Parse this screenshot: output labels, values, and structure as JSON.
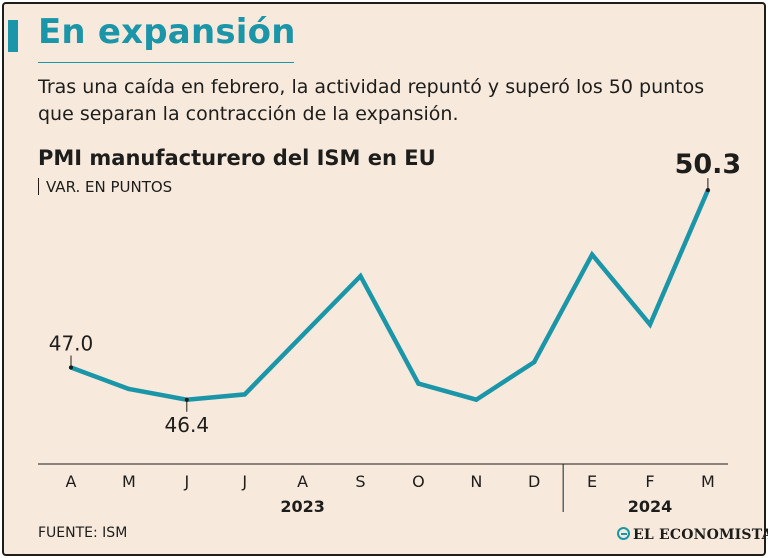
{
  "header": {
    "headline": "En expansión",
    "subtitle": "Tras una caída en febrero, la actividad repuntó y superó los 50 puntos que separan la contracción de la expansión."
  },
  "chart_data": {
    "type": "line",
    "title": "PMI manufacturero del ISM en EU",
    "unit_label": "VAR. EN PUNTOS",
    "categories": [
      "A",
      "M",
      "J",
      "J",
      "A",
      "S",
      "O",
      "N",
      "D",
      "E",
      "F",
      "M"
    ],
    "years": [
      {
        "label": "2023",
        "from": 0,
        "to": 8
      },
      {
        "label": "2024",
        "from": 9,
        "to": 11
      }
    ],
    "series": [
      {
        "name": "PMI manufacturero",
        "values": [
          47.0,
          46.6,
          46.4,
          46.5,
          47.6,
          48.7,
          46.7,
          46.4,
          47.1,
          49.1,
          47.8,
          50.3
        ]
      }
    ],
    "ylim": [
      45.8,
      50.6
    ],
    "annotations": [
      {
        "index": 0,
        "label": "47.0",
        "placement": "above"
      },
      {
        "index": 2,
        "label": "46.4",
        "placement": "below"
      },
      {
        "index": 11,
        "label": "50.3",
        "placement": "above",
        "bold": true
      }
    ],
    "line_color": "#1b96a8"
  },
  "footer": {
    "source": "FUENTE: ISM",
    "brand": "EL ECONOMISTA"
  }
}
